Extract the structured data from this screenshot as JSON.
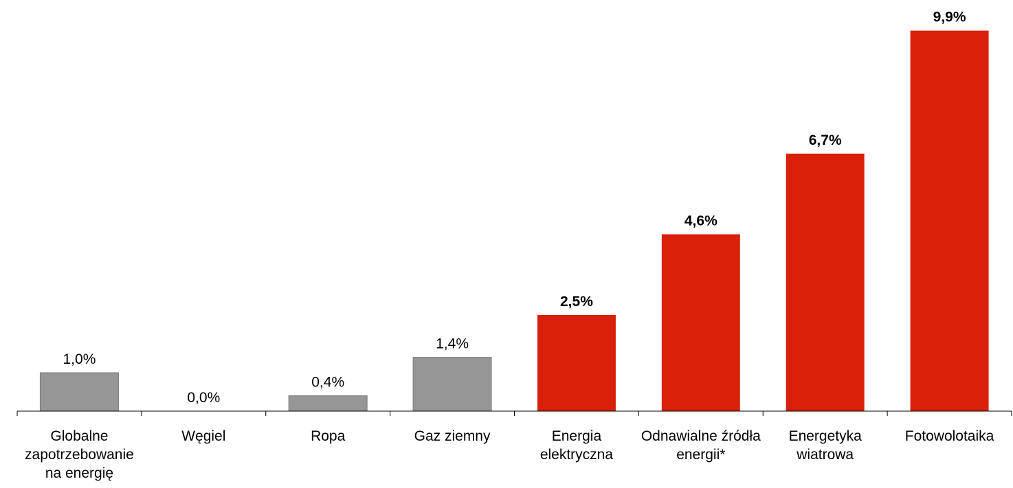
{
  "chart_data": {
    "type": "bar",
    "categories": [
      "Globalne zapotrzebowanie na energię",
      "Węgiel",
      "Ropa",
      "Gaz ziemny",
      "Energia elektryczna",
      "Odnawialne źródła energii*",
      "Energetyka wiatrowa",
      "Fotowolotaika"
    ],
    "values": [
      1.0,
      0.0,
      0.4,
      1.4,
      2.5,
      4.6,
      6.7,
      9.9
    ],
    "value_labels": [
      "1,0%",
      "0,0%",
      "0,4%",
      "1,4%",
      "2,5%",
      "4,6%",
      "6,7%",
      "9,9%"
    ],
    "colors": [
      "#969696",
      "#969696",
      "#969696",
      "#969696",
      "#d9200b",
      "#d9200b",
      "#d9200b",
      "#d9200b"
    ],
    "value_label_bold": [
      false,
      false,
      false,
      false,
      true,
      true,
      true,
      true
    ],
    "ylim": [
      0,
      10
    ]
  }
}
